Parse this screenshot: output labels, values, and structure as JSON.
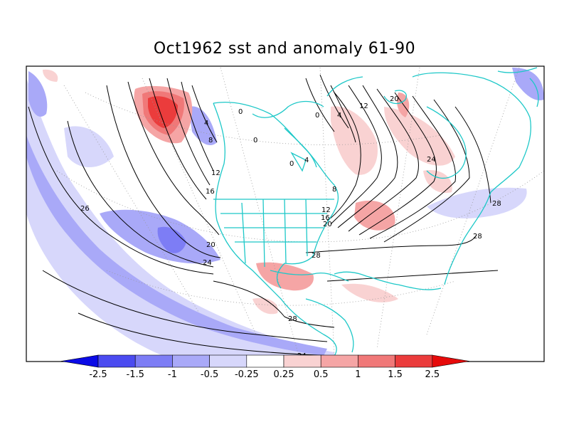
{
  "title": "Oct1962 sst and anomaly 61-90",
  "colors": {
    "land_outline": "#1ec8c8",
    "contour": "#000000",
    "frame": "#000000"
  },
  "colorbar": {
    "labels": [
      "-2.5",
      "-1.5",
      "-1",
      "-0.5",
      "-0.25",
      "0.25",
      "0.5",
      "1",
      "1.5",
      "2.5"
    ],
    "colors": [
      "#0a0ae6",
      "#4b4bf0",
      "#7d7df5",
      "#a9a9f8",
      "#d7d7fb",
      "#ffffff",
      "#f9d2d2",
      "#f5a5a5",
      "#f07878",
      "#eb3c3c",
      "#e60a0a"
    ]
  },
  "contour_labels": [
    {
      "text": "26"
    },
    {
      "text": "4"
    },
    {
      "text": "8"
    },
    {
      "text": "12"
    },
    {
      "text": "16"
    },
    {
      "text": "20"
    },
    {
      "text": "24"
    },
    {
      "text": "0"
    },
    {
      "text": "0"
    },
    {
      "text": "0"
    },
    {
      "text": "4"
    },
    {
      "text": "8"
    },
    {
      "text": "12"
    },
    {
      "text": "16"
    },
    {
      "text": "20"
    },
    {
      "text": "24"
    },
    {
      "text": "28"
    },
    {
      "text": "28"
    },
    {
      "text": "28"
    },
    {
      "text": "28"
    },
    {
      "text": "12"
    },
    {
      "text": "20"
    },
    {
      "text": "0"
    },
    {
      "text": "4"
    },
    {
      "text": "24"
    }
  ]
}
